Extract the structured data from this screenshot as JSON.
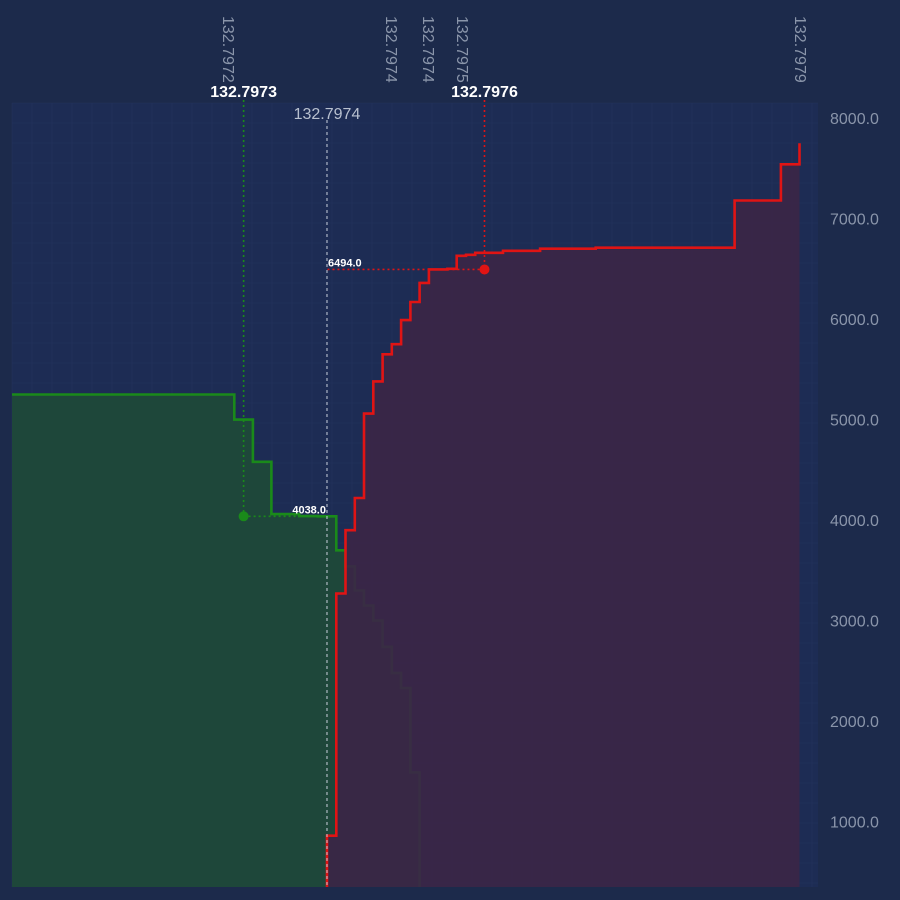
{
  "chart_data": {
    "type": "area",
    "title": "",
    "xlabel": "",
    "ylabel": "",
    "x_ticks": [
      "132.7972",
      "132.7974",
      "132.7974",
      "132.7975",
      "132.7979"
    ],
    "y_ticks": [
      "1000.0",
      "2000.0",
      "3000.0",
      "4000.0",
      "5000.0",
      "6000.0",
      "7000.0",
      "8000.0"
    ],
    "xlim": [
      132.79707,
      132.79794
    ],
    "ylim": [
      350,
      8150
    ],
    "mid_price": "132.7974",
    "mid_price_value": 132.79741,
    "series": [
      {
        "name": "",
        "side": "bid",
        "color": "#1a8a1a",
        "x": [
          132.79707,
          132.79729,
          132.7973,
          132.79731,
          132.79733,
          132.79735,
          132.79737,
          132.79738,
          132.7974,
          132.79741,
          132.79742,
          132.79743,
          132.79744,
          132.79745,
          132.79746,
          132.79747,
          132.79748,
          132.79749,
          132.7975,
          132.79751
        ],
        "y": [
          5250,
          5250,
          5250,
          5000,
          4580,
          4060,
          4060,
          4040,
          4038,
          4038,
          3700,
          3540,
          3300,
          3150,
          3000,
          2740,
          2480,
          2330,
          1490,
          1050
        ]
      },
      {
        "name": "",
        "side": "ask",
        "color": "#e01414",
        "x": [
          132.79741,
          132.79742,
          132.79743,
          132.79744,
          132.79745,
          132.79746,
          132.79747,
          132.79748,
          132.79749,
          132.7975,
          132.79751,
          132.79752,
          132.79753,
          132.79754,
          132.79755,
          132.79756,
          132.79757,
          132.7976,
          132.79764,
          132.7977,
          132.7978,
          132.79785,
          132.7979,
          132.79792
        ],
        "y": [
          860,
          3270,
          3900,
          4220,
          5060,
          5380,
          5650,
          5750,
          5990,
          6170,
          6360,
          6494,
          6494,
          6500,
          6630,
          6640,
          6660,
          6680,
          6700,
          6710,
          6710,
          7180,
          7540,
          7750
        ]
      }
    ],
    "cursors": [
      {
        "price": "132.7973",
        "price_value": 132.79732,
        "value_label": "4038.0",
        "value": 4038,
        "color": "#1a8a1a"
      },
      {
        "price": "132.7976",
        "price_value": 132.79758,
        "value_label": "6494.0",
        "value": 6494,
        "color": "#e01414"
      }
    ]
  }
}
